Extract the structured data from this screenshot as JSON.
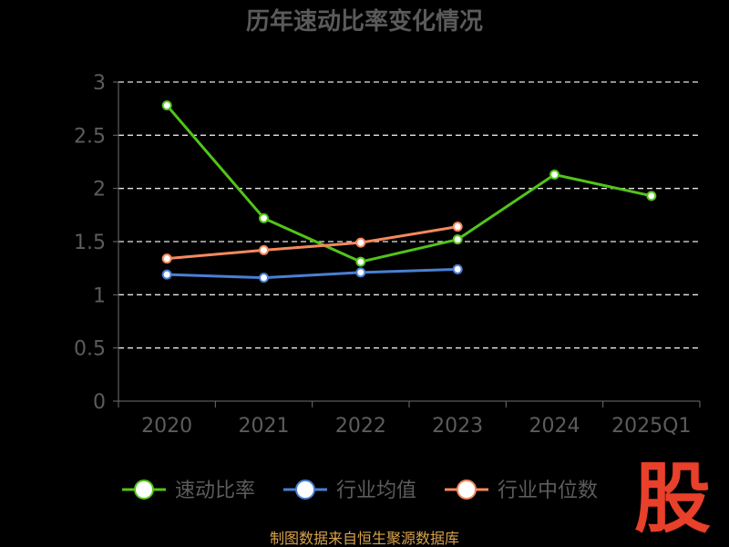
{
  "chart_data": {
    "type": "line",
    "title": "历年速动比率变化情况",
    "categories": [
      "2020",
      "2021",
      "2022",
      "2023",
      "2024",
      "2025Q1"
    ],
    "ylim": [
      0,
      3
    ],
    "yticks": [
      "0",
      "0.5",
      "1",
      "1.5",
      "2",
      "2.5",
      "3"
    ],
    "grid": true,
    "legend_position": "bottom",
    "series": [
      {
        "name": "速动比率",
        "color": "#52c41a",
        "values": [
          2.78,
          1.72,
          1.31,
          1.52,
          2.13,
          1.93
        ]
      },
      {
        "name": "行业均值",
        "color": "#4a7fd4",
        "values": [
          1.19,
          1.16,
          1.21,
          1.24,
          null,
          null
        ]
      },
      {
        "name": "行业中位数",
        "color": "#f48a5e",
        "values": [
          1.34,
          1.42,
          1.49,
          1.64,
          null,
          null
        ]
      }
    ]
  },
  "source_text": "制图数据来自恒生聚源数据库",
  "watermark_text": "股"
}
